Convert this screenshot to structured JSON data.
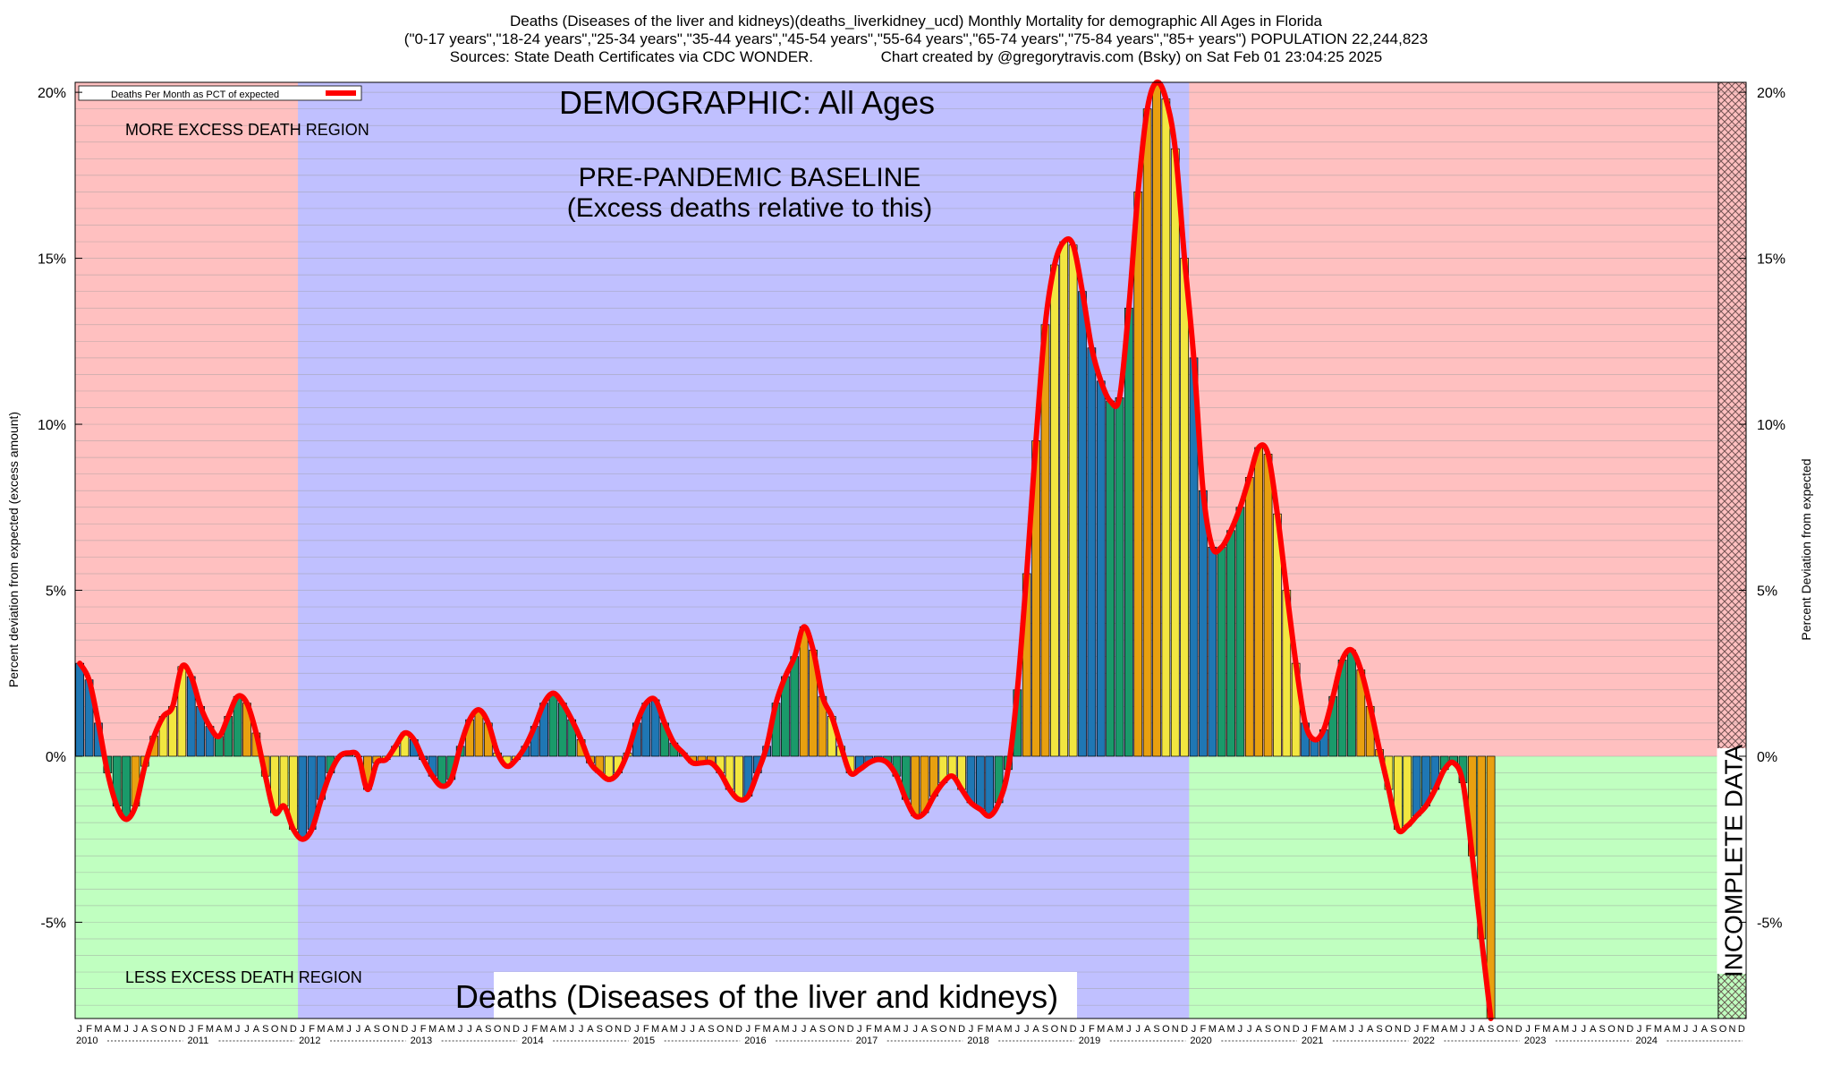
{
  "header": {
    "line1": "Deaths (Diseases of the liver and kidneys)(deaths_liverkidney_ucd) Monthly Mortality for demographic All Ages in Florida",
    "line2": "(\"0-17 years\",\"18-24 years\",\"25-34 years\",\"35-44 years\",\"45-54 years\",\"55-64 years\",\"65-74 years\",\"75-84 years\",\"85+ years\") POPULATION 22,244,823",
    "line3": "Sources: State Death Certificates via CDC WONDER.                Chart created by @gregorytravis.com (Bsky) on Sat Feb 01 23:04:25 2025"
  },
  "colors": {
    "excess_region": "#ffc0c0",
    "less_region": "#c0ffc0",
    "baseline_region": "#c0c0ff",
    "line": "#ff0000",
    "bar_palette": [
      "#1f77b4",
      "#1a9a6a",
      "#e8a010",
      "#f2e640"
    ]
  },
  "chart_data": {
    "type": "bar",
    "title": "DEMOGRAPHIC: All Ages",
    "bottom_title": "Deaths (Diseases of the liver and kidneys)",
    "ylabel_left": "Percent deviation from expected (excess amount)",
    "ylabel_right": "Percent Deviation from expected",
    "ylim": [
      -7.9,
      20.3
    ],
    "yticks": [
      -5,
      0,
      5,
      10,
      15,
      20
    ],
    "ytick_labels": [
      "-5%",
      "0%",
      "5%",
      "10%",
      "15%",
      "20%"
    ],
    "legend": {
      "label": "Deaths Per Month as PCT of expected",
      "position": "top-left"
    },
    "annotations": {
      "more_excess": "MORE EXCESS DEATH REGION",
      "less_excess": "LESS EXCESS DEATH REGION",
      "baseline_1": "PRE-PANDEMIC BASELINE",
      "baseline_2": "(Excess deaths relative to this)",
      "incomplete": "INCOMPLETE DATA"
    },
    "baseline_period": [
      "2012-01",
      "2019-12"
    ],
    "incomplete_from": "2024-10",
    "month_letters": [
      "J",
      "F",
      "M",
      "A",
      "M",
      "J",
      "J",
      "A",
      "S",
      "O",
      "N",
      "D"
    ],
    "years": [
      "2010",
      "2011",
      "2012",
      "2013",
      "2014",
      "2015",
      "2016",
      "2017",
      "2018",
      "2019",
      "2020",
      "2021",
      "2022",
      "2023",
      "2024"
    ],
    "series": [
      {
        "values": [
          2.8,
          2.3,
          1.0,
          -0.5,
          -1.5,
          -1.9,
          -1.5,
          -0.3,
          0.6,
          1.2,
          1.5,
          2.7,
          2.4,
          1.5,
          0.9,
          0.6,
          1.2,
          1.8,
          1.6,
          0.7,
          -0.6,
          -1.7,
          -1.5,
          -2.2,
          -2.5,
          -2.2,
          -1.3,
          -0.5,
          0.0,
          0.1,
          0.0,
          -1.0,
          -0.2,
          -0.1,
          0.3,
          0.7,
          0.5,
          -0.1,
          -0.6,
          -0.9,
          -0.7,
          0.3,
          1.1,
          1.4,
          1.0,
          0.1,
          -0.3,
          -0.1,
          0.3,
          0.9,
          1.6,
          1.9,
          1.6,
          1.1,
          0.5,
          -0.2,
          -0.5,
          -0.7,
          -0.5,
          0.1,
          1.0,
          1.6,
          1.7,
          1.0,
          0.4,
          0.1,
          -0.2,
          -0.2,
          -0.2,
          -0.5,
          -1.0,
          -1.3,
          -1.2,
          -0.5,
          0.3,
          1.6,
          2.4,
          3.0,
          3.9,
          3.2,
          1.8,
          1.2,
          0.3,
          -0.5,
          -0.4,
          -0.2,
          -0.1,
          -0.2,
          -0.6,
          -1.3,
          -1.8,
          -1.7,
          -1.2,
          -0.8,
          -0.6,
          -1.0,
          -1.4,
          -1.6,
          -1.8,
          -1.4,
          -0.4,
          2.0,
          5.5,
          9.5,
          13.0,
          14.8,
          15.5,
          15.4,
          14.0,
          12.3,
          11.3,
          10.7,
          10.8,
          13.5,
          17.0,
          19.5,
          20.3,
          19.8,
          18.3,
          15.0,
          12.0,
          8.0,
          6.3,
          6.3,
          6.8,
          7.5,
          8.4,
          9.3,
          9.1,
          7.3,
          5.0,
          2.8,
          1.0,
          0.5,
          0.8,
          1.8,
          2.9,
          3.2,
          2.6,
          1.5,
          0.2,
          -1.0,
          -2.2,
          -2.1,
          -1.8,
          -1.5,
          -1.0,
          -0.4,
          -0.2,
          -0.8,
          -3.0,
          -5.5,
          -7.9
        ]
      }
    ]
  }
}
